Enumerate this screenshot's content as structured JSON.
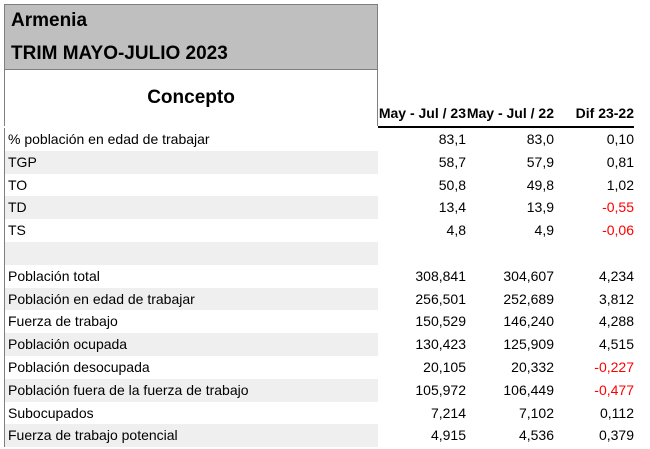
{
  "title": {
    "region": "Armenia",
    "period": "TRIM MAYO-JULIO 2023"
  },
  "table": {
    "concept_header": "Concepto",
    "columns": [
      "May - Jul / 23",
      "May - Jul / 22",
      "Dif 23-22"
    ],
    "rows": [
      {
        "label": "% población en edad de trabajar",
        "v23": "83,1",
        "v22": "83,0",
        "dif": "0,10",
        "negative": false
      },
      {
        "label": "TGP",
        "v23": "58,7",
        "v22": "57,9",
        "dif": "0,81",
        "negative": false
      },
      {
        "label": "TO",
        "v23": "50,8",
        "v22": "49,8",
        "dif": "1,02",
        "negative": false
      },
      {
        "label": "TD",
        "v23": "13,4",
        "v22": "13,9",
        "dif": "-0,55",
        "negative": true
      },
      {
        "label": "TS",
        "v23": "4,8",
        "v22": "4,9",
        "dif": "-0,06",
        "negative": true
      },
      {
        "label": "",
        "v23": "",
        "v22": "",
        "dif": "",
        "negative": false
      },
      {
        "label": "Población total",
        "v23": "308,841",
        "v22": "304,607",
        "dif": "4,234",
        "negative": false
      },
      {
        "label": "Población en edad de trabajar",
        "v23": "256,501",
        "v22": "252,689",
        "dif": "3,812",
        "negative": false
      },
      {
        "label": "Fuerza de trabajo",
        "v23": "150,529",
        "v22": "146,240",
        "dif": "4,288",
        "negative": false
      },
      {
        "label": "Población ocupada",
        "v23": "130,423",
        "v22": "125,909",
        "dif": "4,515",
        "negative": false
      },
      {
        "label": "Población desocupada",
        "v23": "20,105",
        "v22": "20,332",
        "dif": "-0,227",
        "negative": true
      },
      {
        "label": "Población fuera de la fuerza de trabajo",
        "v23": "105,972",
        "v22": "106,449",
        "dif": "-0,477",
        "negative": true
      },
      {
        "label": "Subocupados",
        "v23": "7,214",
        "v22": "7,102",
        "dif": "0,112",
        "negative": false
      },
      {
        "label": "Fuerza de trabajo potencial",
        "v23": "4,915",
        "v22": "4,536",
        "dif": "0,379",
        "negative": false
      }
    ]
  },
  "colors": {
    "header_fill": "#bfbfbf",
    "row_shade": "#efefef",
    "negative": "#ff0000"
  }
}
